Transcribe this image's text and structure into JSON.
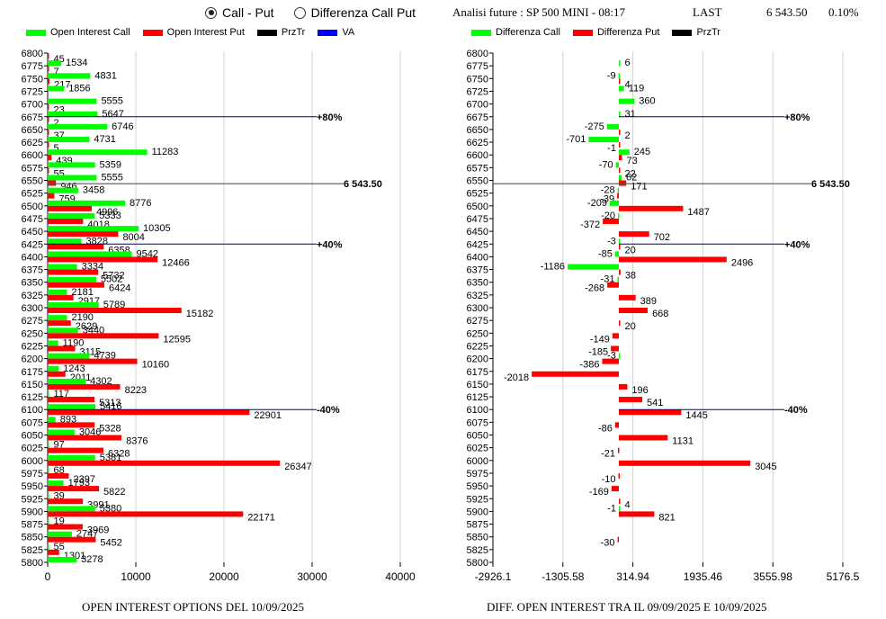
{
  "controls": {
    "radio_options": [
      {
        "label": "Call - Put",
        "selected": true
      },
      {
        "label": "Differenza Call Put",
        "selected": false
      }
    ]
  },
  "header": {
    "title": "Analisi future : SP 500 MINI - 08:17",
    "last_label": "LAST",
    "last_value": "6 543.50",
    "change": "0.10%"
  },
  "colors": {
    "call": "#00ff00",
    "put": "#ff0000",
    "przTr": "#000000",
    "va": "#0000ff",
    "grid": "#d3d3d3"
  },
  "chart_data": [
    {
      "type": "bar",
      "orientation": "horizontal",
      "title": "OPEN INTEREST OPTIONS DEL 10/09/2025",
      "legend": [
        "Open Interest Call",
        "Open Interest Put",
        "PrzTr",
        "VA"
      ],
      "legend_placement": "top",
      "categories": [
        6800,
        6775,
        6750,
        6725,
        6700,
        6675,
        6650,
        6625,
        6600,
        6575,
        6550,
        6525,
        6500,
        6475,
        6450,
        6425,
        6400,
        6375,
        6350,
        6325,
        6300,
        6275,
        6250,
        6225,
        6200,
        6175,
        6150,
        6125,
        6100,
        6075,
        6050,
        6025,
        6000,
        5975,
        5950,
        5925,
        5900,
        5875,
        5850,
        5825,
        5800
      ],
      "series": [
        {
          "name": "Open Interest Call",
          "values": [
            0,
            1534,
            4831,
            1856,
            5555,
            5647,
            6746,
            4731,
            11283,
            5359,
            5555,
            3458,
            8776,
            5333,
            10305,
            3828,
            9542,
            3334,
            5502,
            2181,
            5789,
            2190,
            3440,
            1190,
            4739,
            1243,
            4302,
            117,
            5416,
            893,
            3046,
            97,
            5381,
            68,
            1793,
            39,
            5380,
            19,
            2747,
            55,
            3278
          ]
        },
        {
          "name": "Open Interest Put",
          "values": [
            45,
            7,
            217,
            0,
            23,
            2,
            37,
            5,
            439,
            55,
            946,
            759,
            4996,
            4018,
            8004,
            6358,
            12466,
            5732,
            6424,
            2917,
            15182,
            2629,
            12595,
            3115,
            10160,
            2011,
            8223,
            5313,
            22901,
            5328,
            8376,
            6328,
            26347,
            2397,
            5822,
            3991,
            22171,
            3969,
            5452,
            1301,
            0
          ]
        }
      ],
      "xlim": [
        0,
        40000
      ],
      "xticks": [
        "0",
        "10000",
        "20000",
        "30000",
        "40000"
      ],
      "grid": true,
      "lines": [
        {
          "label": "+80%",
          "level": 6675,
          "kind": "VA"
        },
        {
          "label": "6 543.50",
          "level": 6543.5,
          "kind": "PrzTr"
        },
        {
          "label": "+40%",
          "level": 6425,
          "kind": "VA"
        },
        {
          "label": "-40%",
          "level": 6100,
          "kind": "VA"
        }
      ]
    },
    {
      "type": "bar",
      "orientation": "horizontal",
      "title": "DIFF. OPEN INTEREST TRA IL 09/09/2025 E 10/09/2025",
      "legend": [
        "Differenza Call",
        "Differenza Put",
        "PrzTr"
      ],
      "legend_placement": "top",
      "categories": [
        6800,
        6775,
        6750,
        6725,
        6700,
        6675,
        6650,
        6625,
        6600,
        6575,
        6550,
        6525,
        6500,
        6475,
        6450,
        6425,
        6400,
        6375,
        6350,
        6325,
        6300,
        6275,
        6250,
        6225,
        6200,
        6175,
        6150,
        6125,
        6100,
        6075,
        6050,
        6025,
        6000,
        5975,
        5950,
        5925,
        5900,
        5875,
        5850,
        5825,
        5800
      ],
      "series": [
        {
          "name": "Differenza Call",
          "values": [
            null,
            6,
            -9,
            119,
            360,
            31,
            -275,
            -701,
            245,
            -70,
            62,
            -28,
            -209,
            -20,
            null,
            -3,
            -85,
            -1186,
            -31,
            null,
            null,
            null,
            null,
            null,
            -3,
            null,
            null,
            null,
            null,
            null,
            null,
            null,
            null,
            null,
            null,
            null,
            -1,
            null,
            null,
            null,
            null
          ]
        },
        {
          "name": "Differenza Put",
          "values": [
            null,
            null,
            4,
            null,
            null,
            null,
            2,
            -1,
            73,
            22,
            171,
            -39,
            1487,
            -372,
            702,
            20,
            2496,
            38,
            -268,
            389,
            668,
            20,
            -149,
            -185,
            -386,
            -2018,
            196,
            541,
            1445,
            -86,
            1131,
            -21,
            3045,
            -10,
            -169,
            4,
            821,
            null,
            -30,
            null,
            null
          ]
        }
      ],
      "xlim": [
        -2926.1,
        5176.5
      ],
      "xticks": [
        "-2926.1",
        "-1305.58",
        "314.94",
        "1935.46",
        "3555.98",
        "5176.5"
      ],
      "grid": true,
      "lines": [
        {
          "label": "+80%",
          "level": 6675,
          "kind": "VA"
        },
        {
          "label": "6 543.50",
          "level": 6543.5,
          "kind": "PrzTr"
        },
        {
          "label": "+40%",
          "level": 6425,
          "kind": "VA"
        },
        {
          "label": "-40%",
          "level": 6100,
          "kind": "VA"
        }
      ]
    }
  ]
}
